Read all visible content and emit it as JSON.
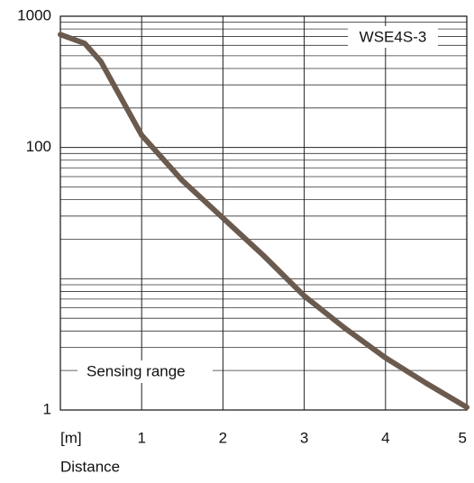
{
  "chart_data": {
    "type": "line",
    "log_y": true,
    "grid": true,
    "minor_grid": true,
    "ylabel": "Sensing range",
    "xlabel": "Distance",
    "x": [
      0,
      0.3,
      0.5,
      1,
      1.5,
      2,
      2.5,
      3,
      3.5,
      4,
      4.5,
      5
    ],
    "series": [
      {
        "name": "WSE4S-3",
        "color": "#6b5a4e",
        "values": [
          725,
          620,
          450,
          124,
          56,
          29,
          15,
          7.4,
          4.2,
          2.5,
          1.6,
          1.05
        ]
      }
    ],
    "xlim": [
      0,
      5
    ],
    "xticks": [
      {
        "value": 0,
        "label": "[m]"
      },
      1,
      2,
      3,
      4,
      5
    ],
    "ylim": [
      1,
      1000
    ],
    "yticks": [
      1,
      100,
      1000
    ]
  }
}
